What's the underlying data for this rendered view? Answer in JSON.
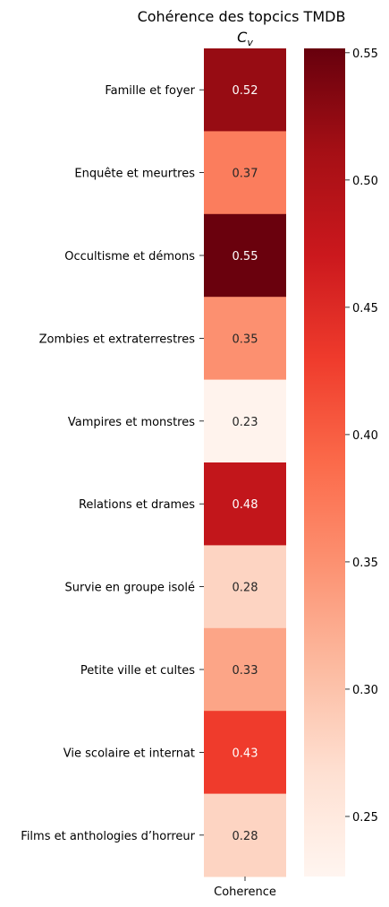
{
  "chart_data": {
    "type": "heatmap",
    "title": "Cohérence des topcics TMDB",
    "subtitle_var": "C",
    "subtitle_sub": "v",
    "xlabel": "",
    "ylabel": "",
    "columns": [
      "Coherence"
    ],
    "rows": [
      {
        "label": "Famille et foyer",
        "value": 0.52,
        "text": "0.52"
      },
      {
        "label": "Enquête et meurtres",
        "value": 0.37,
        "text": "0.37"
      },
      {
        "label": "Occultisme et démons",
        "value": 0.55,
        "text": "0.55"
      },
      {
        "label": "Zombies et extraterrestres",
        "value": 0.35,
        "text": "0.35"
      },
      {
        "label": "Vampires et monstres",
        "value": 0.23,
        "text": "0.23"
      },
      {
        "label": "Relations et drames",
        "value": 0.48,
        "text": "0.48"
      },
      {
        "label": "Survie en groupe isolé",
        "value": 0.28,
        "text": "0.28"
      },
      {
        "label": "Petite ville et cultes",
        "value": 0.33,
        "text": "0.33"
      },
      {
        "label": "Vie scolaire et internat",
        "value": 0.43,
        "text": "0.43"
      },
      {
        "label": "Films et anthologies d’horreur",
        "value": 0.28,
        "text": "0.28"
      }
    ],
    "colormap": "Reds",
    "colorbar": {
      "vmin": 0.2264,
      "vmax": 0.5517,
      "ticks": [
        0.25,
        0.3,
        0.35,
        0.4,
        0.45,
        0.5,
        0.55
      ],
      "tick_labels": [
        "0.25",
        "0.30",
        "0.35",
        "0.40",
        "0.45",
        "0.50",
        "0.55"
      ]
    }
  }
}
